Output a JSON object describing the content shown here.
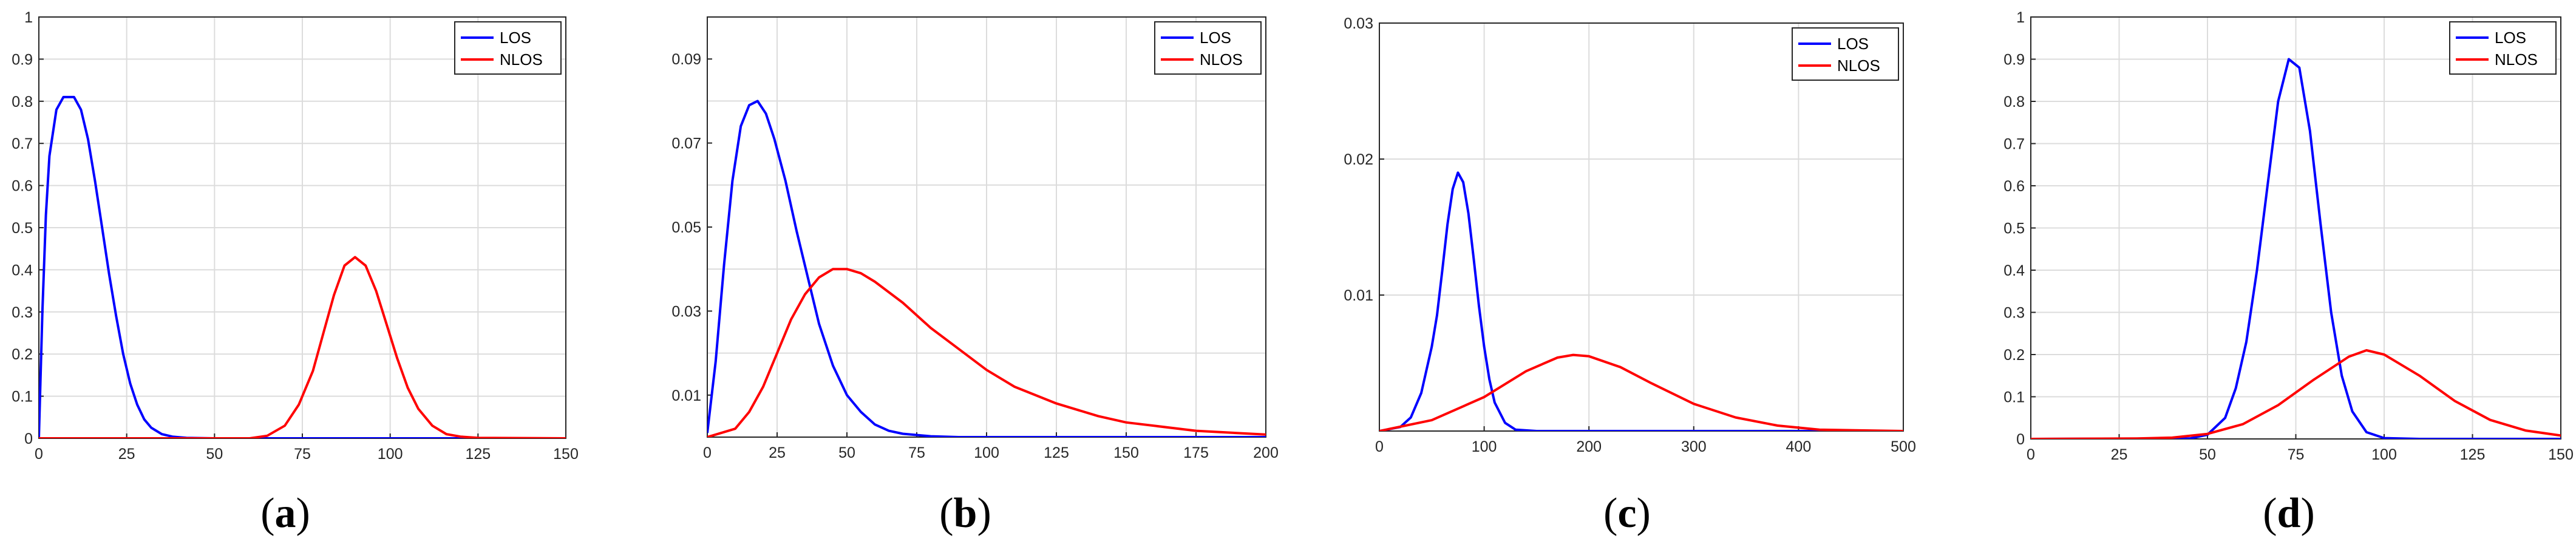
{
  "colors": {
    "los": "#0000ff",
    "nlos": "#ff0000",
    "grid": "#dcdcdc",
    "axis": "#262626"
  },
  "chart_data": [
    {
      "id": "a",
      "caption": {
        "open": "(",
        "letter": "a",
        "close": ")"
      },
      "type": "line",
      "xlim": [
        0,
        150
      ],
      "ylim": [
        0,
        1
      ],
      "xticks": [
        0,
        25,
        50,
        75,
        100,
        125,
        150
      ],
      "yticks": [
        0,
        0.1,
        0.2,
        0.3,
        0.4,
        0.5,
        0.6,
        0.7,
        0.8,
        0.9,
        1
      ],
      "xtick_labels": [
        "0",
        "25",
        "50",
        "75",
        "100",
        "125",
        "150"
      ],
      "ytick_labels": [
        "0",
        "0.1",
        "0.2",
        "0.3",
        "0.4",
        "0.5",
        "0.6",
        "0.7",
        "0.8",
        "0.9",
        "1"
      ],
      "grid": true,
      "legend": "top-right",
      "series": [
        {
          "name": "LOS",
          "color": "#0000ff",
          "x": [
            0,
            1,
            2,
            3,
            5,
            7,
            10,
            12,
            14,
            16,
            18,
            20,
            22,
            24,
            26,
            28,
            30,
            32,
            35,
            38,
            42,
            50,
            75,
            100,
            150
          ],
          "y": [
            0,
            0.3,
            0.53,
            0.67,
            0.78,
            0.81,
            0.81,
            0.78,
            0.71,
            0.61,
            0.5,
            0.39,
            0.29,
            0.2,
            0.13,
            0.08,
            0.045,
            0.025,
            0.01,
            0.004,
            0.001,
            0,
            0,
            0,
            0
          ]
        },
        {
          "name": "NLOS",
          "color": "#ff0000",
          "x": [
            0,
            60,
            65,
            70,
            74,
            78,
            81,
            84,
            87,
            90,
            93,
            96,
            99,
            102,
            105,
            108,
            112,
            116,
            120,
            125,
            150
          ],
          "y": [
            0,
            0,
            0.006,
            0.03,
            0.08,
            0.16,
            0.25,
            0.34,
            0.41,
            0.43,
            0.41,
            0.35,
            0.27,
            0.19,
            0.12,
            0.07,
            0.03,
            0.01,
            0.004,
            0.001,
            0
          ]
        }
      ]
    },
    {
      "id": "b",
      "caption": {
        "open": "(",
        "letter": "b",
        "close": ")"
      },
      "type": "line",
      "xlim": [
        0,
        200
      ],
      "ylim": [
        0,
        0.1
      ],
      "xticks": [
        0,
        25,
        50,
        75,
        100,
        125,
        150,
        175,
        200
      ],
      "yticks": [
        0.01,
        0.03,
        0.05,
        0.07,
        0.09
      ],
      "ygrid": [
        0,
        0.02,
        0.04,
        0.06,
        0.08,
        0.1
      ],
      "xtick_labels": [
        "0",
        "25",
        "50",
        "75",
        "100",
        "125",
        "150",
        "175",
        "200"
      ],
      "ytick_labels": [
        "0.01",
        "0.03",
        "0.05",
        "0.07",
        "0.09"
      ],
      "grid": true,
      "legend": "top-right",
      "series": [
        {
          "name": "LOS",
          "color": "#0000ff",
          "x": [
            0,
            3,
            6,
            9,
            12,
            15,
            18,
            21,
            24,
            28,
            32,
            36,
            40,
            45,
            50,
            55,
            60,
            65,
            70,
            80,
            90,
            100,
            200
          ],
          "y": [
            0.001,
            0.018,
            0.041,
            0.061,
            0.074,
            0.079,
            0.08,
            0.077,
            0.071,
            0.061,
            0.049,
            0.038,
            0.027,
            0.017,
            0.01,
            0.006,
            0.003,
            0.0015,
            0.0008,
            0.0002,
            0,
            0,
            0
          ]
        },
        {
          "name": "NLOS",
          "color": "#ff0000",
          "x": [
            0,
            10,
            15,
            20,
            25,
            30,
            35,
            40,
            45,
            50,
            55,
            60,
            70,
            80,
            90,
            100,
            110,
            125,
            140,
            150,
            175,
            200
          ],
          "y": [
            0,
            0.002,
            0.006,
            0.012,
            0.02,
            0.028,
            0.034,
            0.038,
            0.04,
            0.04,
            0.039,
            0.037,
            0.032,
            0.026,
            0.021,
            0.016,
            0.012,
            0.008,
            0.005,
            0.0035,
            0.0015,
            0.0006
          ]
        }
      ]
    },
    {
      "id": "c",
      "caption": {
        "open": "(",
        "letter": "c",
        "close": ")"
      },
      "type": "line",
      "xlim": [
        0,
        500
      ],
      "ylim": [
        0,
        0.03
      ],
      "xticks": [
        0,
        100,
        200,
        300,
        400,
        500
      ],
      "yticks": [
        0.01,
        0.02,
        0.03
      ],
      "xtick_labels": [
        "0",
        "100",
        "200",
        "300",
        "400",
        "500"
      ],
      "ytick_labels": [
        "0.01",
        "0.02",
        "0.03"
      ],
      "grid": true,
      "legend": "top-right",
      "series": [
        {
          "name": "LOS",
          "color": "#0000ff",
          "x": [
            0,
            20,
            30,
            40,
            50,
            55,
            60,
            65,
            70,
            75,
            80,
            85,
            90,
            95,
            100,
            105,
            110,
            120,
            130,
            150,
            500
          ],
          "y": [
            0,
            0.0003,
            0.001,
            0.0028,
            0.0062,
            0.0085,
            0.0118,
            0.0152,
            0.0178,
            0.019,
            0.0183,
            0.016,
            0.0127,
            0.0092,
            0.0062,
            0.0038,
            0.0021,
            0.0006,
            0.0001,
            0,
            0
          ]
        },
        {
          "name": "NLOS",
          "color": "#ff0000",
          "x": [
            0,
            50,
            100,
            140,
            170,
            185,
            200,
            230,
            260,
            300,
            340,
            380,
            420,
            500
          ],
          "y": [
            0,
            0.0008,
            0.0025,
            0.0044,
            0.0054,
            0.0056,
            0.0055,
            0.0047,
            0.0035,
            0.002,
            0.001,
            0.0004,
            0.0001,
            0
          ]
        }
      ]
    },
    {
      "id": "d",
      "caption": {
        "open": "(",
        "letter": "d",
        "close": ")"
      },
      "type": "line",
      "xlim": [
        0,
        150
      ],
      "ylim": [
        0,
        1
      ],
      "xticks": [
        0,
        25,
        50,
        75,
        100,
        125,
        150
      ],
      "yticks": [
        0,
        0.1,
        0.2,
        0.3,
        0.4,
        0.5,
        0.6,
        0.7,
        0.8,
        0.9,
        1
      ],
      "xtick_labels": [
        "0",
        "25",
        "50",
        "75",
        "100",
        "125",
        "150"
      ],
      "ytick_labels": [
        "0",
        "0.1",
        "0.2",
        "0.3",
        "0.4",
        "0.5",
        "0.6",
        "0.7",
        "0.8",
        "0.9",
        "1"
      ],
      "grid": true,
      "legend": "top-right",
      "series": [
        {
          "name": "LOS",
          "color": "#0000ff",
          "x": [
            0,
            45,
            50,
            55,
            58,
            61,
            64,
            67,
            70,
            73,
            76,
            79,
            82,
            85,
            88,
            91,
            95,
            100,
            110,
            150
          ],
          "y": [
            0,
            0.001,
            0.01,
            0.05,
            0.12,
            0.23,
            0.4,
            0.6,
            0.8,
            0.9,
            0.88,
            0.73,
            0.51,
            0.3,
            0.15,
            0.065,
            0.016,
            0.002,
            0,
            0
          ]
        },
        {
          "name": "NLOS",
          "color": "#ff0000",
          "x": [
            0,
            30,
            40,
            50,
            60,
            70,
            80,
            90,
            95,
            100,
            110,
            120,
            130,
            140,
            150
          ],
          "y": [
            0,
            0.001,
            0.003,
            0.012,
            0.035,
            0.08,
            0.14,
            0.195,
            0.21,
            0.2,
            0.15,
            0.09,
            0.045,
            0.02,
            0.008
          ]
        }
      ]
    }
  ]
}
